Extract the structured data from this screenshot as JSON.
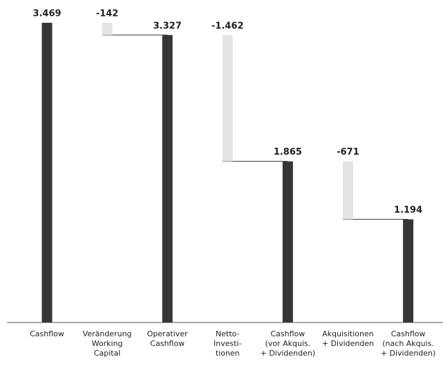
{
  "chart_data": {
    "type": "waterfall",
    "categories": [
      [
        "Cashflow"
      ],
      [
        "Veränderung",
        "Working",
        "Capital"
      ],
      [
        "Operativer",
        "Cashflow"
      ],
      [
        "Netto-",
        "Investi-",
        "tionen"
      ],
      [
        "Cashflow",
        "(vor Akquis.",
        "+ Dividenden)"
      ],
      [
        "Akquisitionen",
        "+ Dividenden"
      ],
      [
        "Cashflow",
        "(nach Akquis.",
        "+ Dividenden)"
      ]
    ],
    "values": [
      3469,
      -142,
      3327,
      -1462,
      1865,
      -671,
      1194
    ],
    "value_labels": [
      "3.469",
      "-142",
      "3.327",
      "-1.462",
      "1.865",
      "-671",
      "1.194"
    ],
    "colors": [
      "#363636",
      "#e4e4e4",
      "#363636",
      "#e4e4e4",
      "#363636",
      "#e4e4e4",
      "#363636"
    ]
  }
}
